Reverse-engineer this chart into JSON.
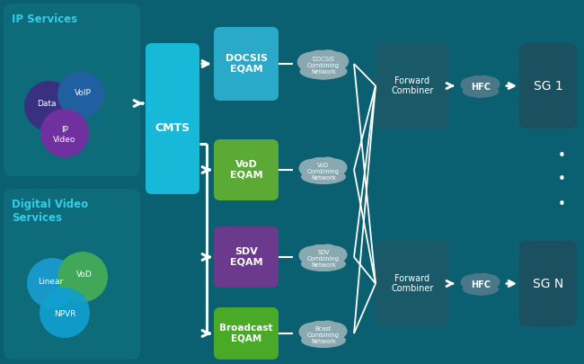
{
  "bg_color": "#0a6070",
  "panel_color": "#0d6b7a",
  "box_cmts": "#18b8d8",
  "box_docsis": "#2aaac8",
  "box_vod": "#5aaa35",
  "box_sdv": "#6b3a8c",
  "box_bcast": "#4aaa28",
  "box_fwd": "#1a5a68",
  "box_sg": "#1a5060",
  "cloud_color": "#8aa8b0",
  "hfc_cloud_color": "#4a7888",
  "white": "#ffffff",
  "cyan_text": "#35cce8",
  "ip_services_label": "IP Services",
  "digital_video_label": "Digital Video\nServices",
  "cmts_label": "CMTS",
  "docsis_label": "DOCSIS\nEQAM",
  "vod_label": "VoD\nEQAM",
  "sdv_label": "SDV\nEQAM",
  "broadcast_label": "Broadcast\nEQAM",
  "docsis_cloud_label": "DOCSIS\nCombining\nNetwork",
  "vod_cloud_label": "VoD\nCombining\nNetwork",
  "sdv_cloud_label": "SDV\nCombining\nNetwork",
  "bcast_cloud_label": "Bcast\nCombining\nNetwork",
  "fwd_combiner_label": "Forward\nCombiner",
  "hfc_label": "HFC",
  "sg1_label": "SG 1",
  "sgn_label": "SG N",
  "data_label": "Data",
  "voip_label": "VoIP",
  "ip_video_label": "IP\nVideo",
  "linear_label": "Linear",
  "vod_circle_label": "VoD",
  "npvr_label": "NPVR"
}
